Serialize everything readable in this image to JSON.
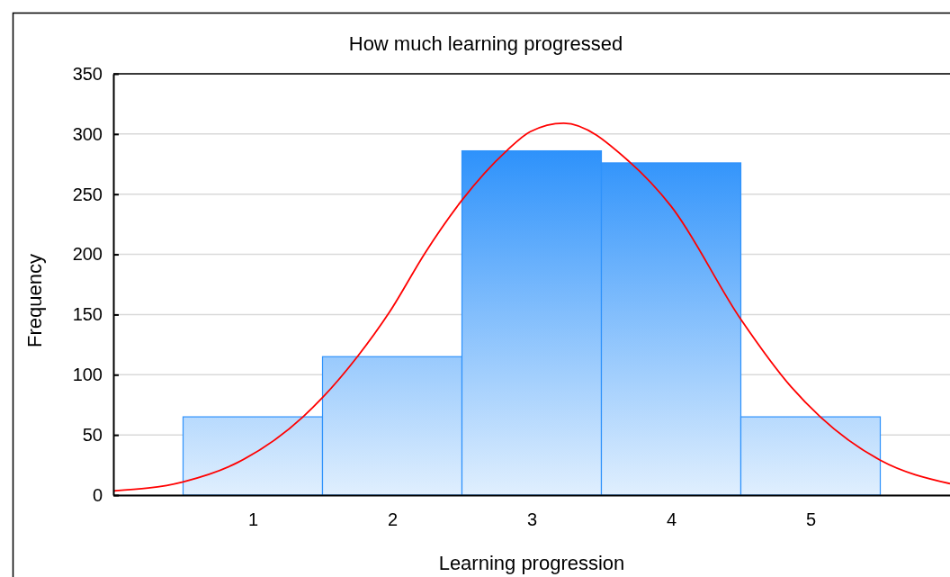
{
  "chart_data": {
    "type": "histogram",
    "title": "How much learning progressed",
    "xlabel": "Learning progression",
    "ylabel": "Frequency",
    "bins": [
      0.5,
      1.5,
      2.5,
      3.5,
      4.5,
      5.5
    ],
    "values": [
      65,
      115,
      286,
      276,
      65
    ],
    "color": "#2e92fb",
    "series": [
      {
        "type": "line",
        "color": "#ff0000",
        "x": [
          0,
          0.5,
          0.89,
          1.36,
          1.5,
          1.75,
          1.98,
          2.24,
          2.5,
          2.82,
          2.99,
          3.23,
          3.7,
          4.0,
          4.5,
          4.86,
          5.07,
          5.5,
          6
        ],
        "values": [
          3.5,
          11,
          27,
          65,
          81,
          115,
          152,
          202,
          245,
          286,
          302,
          309,
          277,
          240,
          146,
          90,
          65,
          29,
          9.5
        ]
      }
    ],
    "xlim": [
      0,
      6
    ],
    "xticks": [
      1,
      2,
      3,
      4,
      5
    ],
    "ylim": [
      0,
      350
    ],
    "yticks": [
      0,
      50,
      100,
      150,
      200,
      250,
      300,
      350
    ],
    "grid": "y",
    "marker": "none",
    "line_style": "solid"
  }
}
